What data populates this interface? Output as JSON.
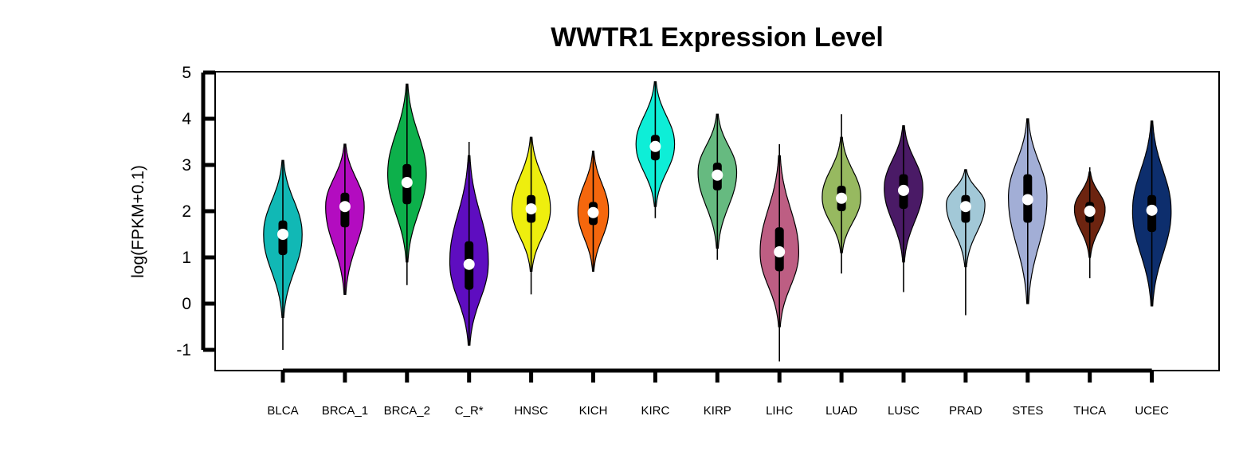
{
  "chart_data": {
    "type": "violin",
    "title": "WWTR1 Expression Level",
    "xlabel": "",
    "ylabel": "log(FPKM+0.1)",
    "ylim": [
      -1.5,
      5
    ],
    "yticks": [
      -1,
      0,
      1,
      2,
      3,
      4,
      5
    ],
    "grid": false,
    "legend": "none",
    "categories": [
      "BLCA",
      "BRCA_1",
      "BRCA_2",
      "C_R*",
      "HNSC",
      "KICH",
      "KIRC",
      "KIRP",
      "LIHC",
      "LUAD",
      "LUSC",
      "PRAD",
      "STES",
      "THCA",
      "UCEC"
    ],
    "series": [
      {
        "category": "BLCA",
        "color": "#11B8B5",
        "min": -1.0,
        "q1": 1.05,
        "median": 1.5,
        "q3": 1.8,
        "max": 3.1,
        "violin_low": -0.3,
        "violin_high": 3.1,
        "mode": 1.5,
        "width": 0.78
      },
      {
        "category": "BRCA_1",
        "color": "#B30CC0",
        "min": 0.2,
        "q1": 1.65,
        "median": 2.1,
        "q3": 2.4,
        "max": 3.45,
        "violin_low": 0.2,
        "violin_high": 3.45,
        "mode": 2.1,
        "width": 0.78
      },
      {
        "category": "BRCA_2",
        "color": "#0DB04B",
        "min": 0.4,
        "q1": 2.15,
        "median": 2.62,
        "q3": 3.02,
        "max": 4.75,
        "violin_low": 0.9,
        "violin_high": 4.75,
        "mode": 2.8,
        "width": 0.78
      },
      {
        "category": "C_R*",
        "color": "#5E0DC0",
        "min": -0.9,
        "q1": 0.3,
        "median": 0.85,
        "q3": 1.35,
        "max": 3.5,
        "violin_low": -0.9,
        "violin_high": 3.2,
        "mode": 0.9,
        "width": 0.78
      },
      {
        "category": "HNSC",
        "color": "#EEEE0E",
        "min": 0.2,
        "q1": 1.75,
        "median": 2.05,
        "q3": 2.35,
        "max": 3.6,
        "violin_low": 0.7,
        "violin_high": 3.6,
        "mode": 2.05,
        "width": 0.78
      },
      {
        "category": "KICH",
        "color": "#F5670D",
        "min": 0.7,
        "q1": 1.7,
        "median": 1.97,
        "q3": 2.2,
        "max": 3.3,
        "violin_low": 0.7,
        "violin_high": 3.3,
        "mode": 2.0,
        "width": 0.62
      },
      {
        "category": "KIRC",
        "color": "#0EEED7",
        "min": 1.85,
        "q1": 3.1,
        "median": 3.4,
        "q3": 3.65,
        "max": 4.8,
        "violin_low": 2.1,
        "violin_high": 4.8,
        "mode": 3.45,
        "width": 0.78
      },
      {
        "category": "KIRP",
        "color": "#66BA80",
        "min": 0.95,
        "q1": 2.45,
        "median": 2.78,
        "q3": 3.05,
        "max": 4.1,
        "violin_low": 1.2,
        "violin_high": 4.1,
        "mode": 2.85,
        "width": 0.78
      },
      {
        "category": "LIHC",
        "color": "#BD5E83",
        "min": -1.25,
        "q1": 0.7,
        "median": 1.12,
        "q3": 1.65,
        "max": 3.45,
        "violin_low": -0.5,
        "violin_high": 3.2,
        "mode": 1.1,
        "width": 0.78
      },
      {
        "category": "LUAD",
        "color": "#97B960",
        "min": 0.65,
        "q1": 2.0,
        "median": 2.28,
        "q3": 2.55,
        "max": 4.1,
        "violin_low": 1.1,
        "violin_high": 3.6,
        "mode": 2.3,
        "width": 0.78
      },
      {
        "category": "LUSC",
        "color": "#4A1A66",
        "min": 0.25,
        "q1": 2.05,
        "median": 2.45,
        "q3": 2.8,
        "max": 3.85,
        "violin_low": 0.9,
        "violin_high": 3.85,
        "mode": 2.5,
        "width": 0.78
      },
      {
        "category": "PRAD",
        "color": "#A2C8D7",
        "min": -0.25,
        "q1": 1.75,
        "median": 2.1,
        "q3": 2.35,
        "max": 2.9,
        "violin_low": 0.8,
        "violin_high": 2.9,
        "mode": 2.15,
        "width": 0.78
      },
      {
        "category": "STES",
        "color": "#A2AED6",
        "min": 0.0,
        "q1": 1.75,
        "median": 2.25,
        "q3": 2.8,
        "max": 4.0,
        "violin_low": 0.0,
        "violin_high": 4.0,
        "mode": 2.3,
        "width": 0.78
      },
      {
        "category": "THCA",
        "color": "#6C2410",
        "min": 0.55,
        "q1": 1.75,
        "median": 2.0,
        "q3": 2.2,
        "max": 2.95,
        "violin_low": 1.0,
        "violin_high": 2.85,
        "mode": 2.05,
        "width": 0.62
      },
      {
        "category": "UCEC",
        "color": "#0D2E6D",
        "min": -0.05,
        "q1": 1.55,
        "median": 2.02,
        "q3": 2.35,
        "max": 3.95,
        "violin_low": -0.05,
        "violin_high": 3.95,
        "mode": 2.0,
        "width": 0.78
      }
    ]
  }
}
